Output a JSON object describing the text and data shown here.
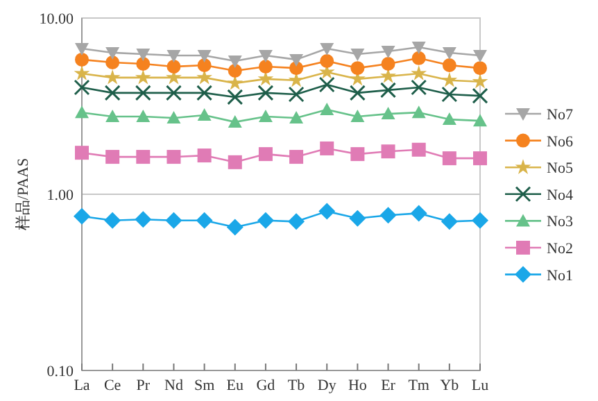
{
  "chart_data": {
    "type": "line",
    "ylabel": "样品/PAAS",
    "categories": [
      "La",
      "Ce",
      "Pr",
      "Nd",
      "Sm",
      "Eu",
      "Gd",
      "Tb",
      "Dy",
      "Ho",
      "Er",
      "Tm",
      "Yb",
      "Lu"
    ],
    "log": "y",
    "ylim": [
      0.1,
      10
    ],
    "yticks": [
      {
        "value": 0.1,
        "label": "0.10"
      },
      {
        "value": 1,
        "label": "1.00"
      },
      {
        "value": 10,
        "label": "10.00"
      }
    ],
    "grid": "y",
    "legend": "right",
    "line_style": "solid",
    "series": [
      {
        "name": "No1",
        "color": "#1aa7e8",
        "marker": "diamond",
        "values": [
          0.75,
          0.71,
          0.72,
          0.71,
          0.71,
          0.65,
          0.71,
          0.7,
          0.8,
          0.73,
          0.76,
          0.78,
          0.7,
          0.71
        ]
      },
      {
        "name": "No2",
        "color": "#e07bb5",
        "marker": "square",
        "values": [
          1.72,
          1.63,
          1.63,
          1.63,
          1.66,
          1.52,
          1.69,
          1.63,
          1.82,
          1.69,
          1.75,
          1.79,
          1.6,
          1.6
        ]
      },
      {
        "name": "No3",
        "color": "#66c28a",
        "marker": "triangle",
        "values": [
          2.91,
          2.76,
          2.76,
          2.71,
          2.81,
          2.57,
          2.76,
          2.71,
          3.02,
          2.76,
          2.86,
          2.91,
          2.66,
          2.61
        ]
      },
      {
        "name": "No4",
        "color": "#1e5e4a",
        "marker": "cross",
        "values": [
          4.04,
          3.76,
          3.76,
          3.76,
          3.76,
          3.56,
          3.76,
          3.69,
          4.19,
          3.76,
          3.9,
          4.04,
          3.69,
          3.62
        ]
      },
      {
        "name": "No5",
        "color": "#d9b44a",
        "marker": "star",
        "values": [
          4.84,
          4.59,
          4.59,
          4.59,
          4.59,
          4.27,
          4.51,
          4.43,
          4.93,
          4.51,
          4.67,
          4.84,
          4.43,
          4.35
        ]
      },
      {
        "name": "No6",
        "color": "#f5821f",
        "marker": "circle",
        "values": [
          5.81,
          5.6,
          5.5,
          5.3,
          5.4,
          5.02,
          5.3,
          5.2,
          5.7,
          5.2,
          5.5,
          5.92,
          5.4,
          5.2
        ]
      },
      {
        "name": "No7",
        "color": "#a6a6a6",
        "marker": "triangle-down",
        "values": [
          6.71,
          6.36,
          6.24,
          6.13,
          6.13,
          5.7,
          6.13,
          5.81,
          6.71,
          6.24,
          6.47,
          6.83,
          6.36,
          6.13
        ]
      }
    ]
  }
}
